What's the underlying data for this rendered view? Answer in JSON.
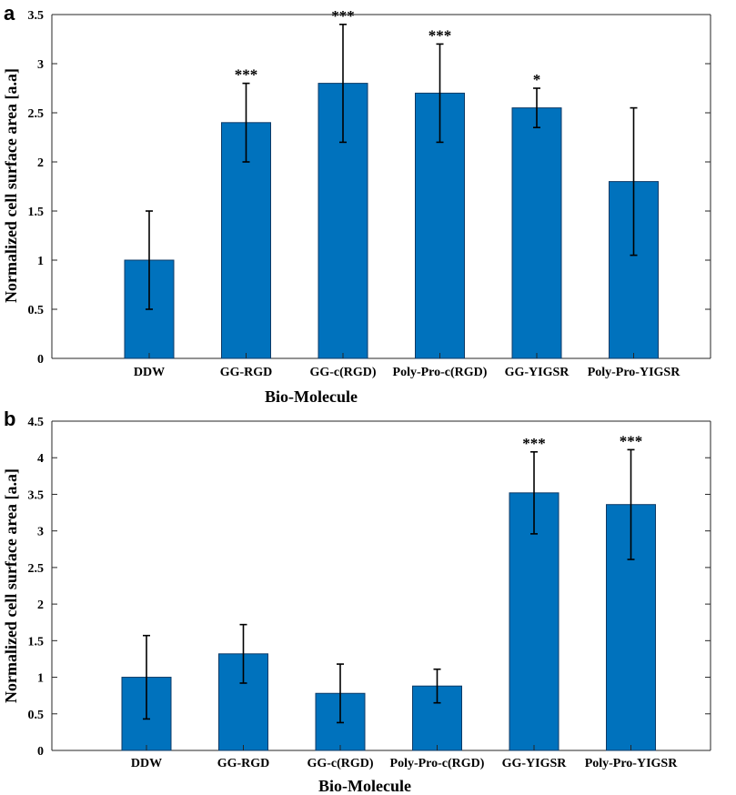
{
  "colors": {
    "bar": "#0072BD",
    "axis": "#262626"
  },
  "chart_data": [
    {
      "type": "bar",
      "panel_label": "a",
      "title": "",
      "xlabel": "Bio-Molecule",
      "ylabel": "Normalized cell surface area [a.a]",
      "categories": [
        "DDW",
        "GG-RGD",
        "GG-c(RGD)",
        "Poly-Pro-c(RGD)",
        "GG-YIGSR",
        "Poly-Pro-YIGSR"
      ],
      "values": [
        1.0,
        2.4,
        2.8,
        2.7,
        2.55,
        1.8
      ],
      "error_low": [
        0.5,
        2.0,
        2.2,
        2.2,
        2.35,
        1.05
      ],
      "error_high": [
        1.5,
        2.8,
        3.4,
        3.2,
        2.75,
        2.55
      ],
      "significance": [
        "",
        "***",
        "***",
        "***",
        "*",
        ""
      ],
      "ylim": [
        0,
        3.5
      ],
      "yticks": [
        0,
        0.5,
        1,
        1.5,
        2,
        2.5,
        3,
        3.5
      ],
      "ytick_labels": [
        "0",
        "0.5",
        "1",
        "1.5",
        "2",
        "2.5",
        "3",
        "3.5"
      ]
    },
    {
      "type": "bar",
      "panel_label": "b",
      "title": "",
      "xlabel": "Bio-Molecule",
      "ylabel": "Normalized cell surface area [a.a]",
      "categories": [
        "DDW",
        "GG-RGD",
        "GG-c(RGD)",
        "Poly-Pro-c(RGD)",
        "GG-YIGSR",
        "Poly-Pro-YIGSR"
      ],
      "values": [
        1.0,
        1.32,
        0.78,
        0.88,
        3.52,
        3.36
      ],
      "error_low": [
        0.43,
        0.92,
        0.38,
        0.65,
        2.96,
        2.61
      ],
      "error_high": [
        1.57,
        1.72,
        1.18,
        1.11,
        4.08,
        4.11
      ],
      "significance": [
        "",
        "",
        "",
        "",
        "***",
        "***"
      ],
      "ylim": [
        0,
        4.5
      ],
      "yticks": [
        0,
        0.5,
        1,
        1.5,
        2,
        2.5,
        3,
        3.5,
        4,
        4.5
      ],
      "ytick_labels": [
        "0",
        "0.5",
        "1",
        "1.5",
        "2",
        "2.5",
        "3",
        "3.5",
        "4",
        "4.5"
      ]
    }
  ]
}
